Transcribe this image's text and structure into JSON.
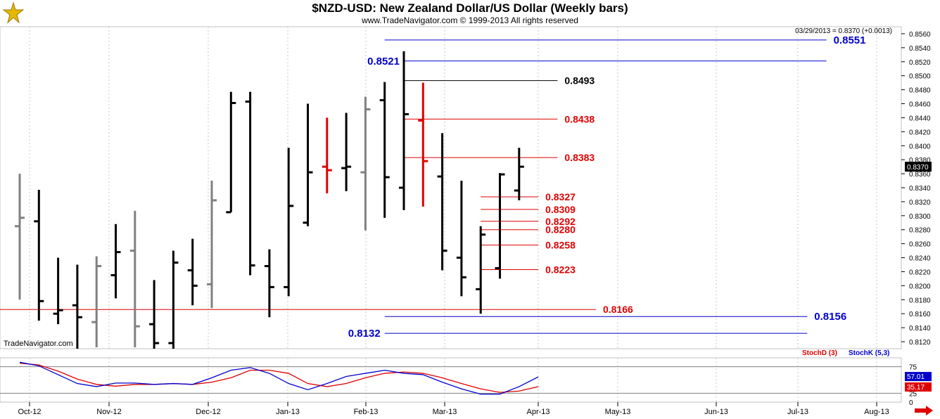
{
  "header": {
    "title": "$NZD-USD:  New Zealand Dollar/US Dollar  (Weekly bars)",
    "subtitle": "www.TradeNavigator.com © 1999-2013 All rights reserved",
    "last_quote": "03/29/2013 = 0.8370 (+0.0013)",
    "watermark": "TradeNavigator.com"
  },
  "colors": {
    "bar_up": "#000000",
    "bar_gray": "#808080",
    "bar_red": "#e00000",
    "level_blue": "#0000cc",
    "level_red": "#e00000",
    "stochD": "#e00000",
    "stochK": "#0000cc"
  },
  "chart_data": {
    "type": "ohlc",
    "ylim": [
      0.811,
      0.857
    ],
    "y_ticks": [
      "0.8560",
      "0.8540",
      "0.8520",
      "0.8500",
      "0.8480",
      "0.8460",
      "0.8440",
      "0.8420",
      "0.8400",
      "0.8380",
      "0.8360",
      "0.8340",
      "0.8320",
      "0.8300",
      "0.8280",
      "0.8260",
      "0.8240",
      "0.8220",
      "0.8200",
      "0.8180",
      "0.8160",
      "0.8140",
      "0.8120"
    ],
    "x_labels": [
      "Oct-12",
      "Nov-12",
      "Dec-12",
      "Jan-13",
      "Feb-13",
      "Mar-13",
      "Apr-13",
      "May-13",
      "Jun-13",
      "Jul-13",
      "Aug-13"
    ],
    "last_price_label": "0.8370",
    "bars": [
      {
        "color": "gray",
        "open": 0.8285,
        "high": 0.836,
        "low": 0.818,
        "close": 0.8297
      },
      {
        "color": "black",
        "open": 0.8292,
        "high": 0.8337,
        "low": 0.815,
        "close": 0.8178
      },
      {
        "color": "black",
        "open": 0.816,
        "high": 0.824,
        "low": 0.8145,
        "close": 0.8165
      },
      {
        "color": "black",
        "open": 0.8172,
        "high": 0.823,
        "low": 0.811,
        "close": 0.8155
      },
      {
        "color": "gray",
        "open": 0.8148,
        "high": 0.8242,
        "low": 0.8112,
        "close": 0.8228
      },
      {
        "color": "black",
        "open": 0.8215,
        "high": 0.8288,
        "low": 0.8182,
        "close": 0.8248
      },
      {
        "color": "gray",
        "open": 0.825,
        "high": 0.8307,
        "low": 0.8112,
        "close": 0.8142
      },
      {
        "color": "black",
        "open": 0.8145,
        "high": 0.8208,
        "low": 0.811,
        "close": 0.8118
      },
      {
        "color": "black",
        "open": 0.8118,
        "high": 0.825,
        "low": 0.811,
        "close": 0.8233
      },
      {
        "color": "black",
        "open": 0.8222,
        "high": 0.8267,
        "low": 0.8172,
        "close": 0.82
      },
      {
        "color": "gray",
        "open": 0.8202,
        "high": 0.835,
        "low": 0.8168,
        "close": 0.8322
      },
      {
        "color": "black",
        "open": 0.8305,
        "high": 0.8477,
        "low": 0.8305,
        "close": 0.8461
      },
      {
        "color": "black",
        "open": 0.8463,
        "high": 0.8477,
        "low": 0.8215,
        "close": 0.8229
      },
      {
        "color": "black",
        "open": 0.8228,
        "high": 0.8252,
        "low": 0.8155,
        "close": 0.8198
      },
      {
        "color": "black",
        "open": 0.8198,
        "high": 0.8397,
        "low": 0.8185,
        "close": 0.8314
      },
      {
        "color": "black",
        "open": 0.829,
        "high": 0.846,
        "low": 0.8285,
        "close": 0.8362
      },
      {
        "color": "red",
        "open": 0.837,
        "high": 0.844,
        "low": 0.8332,
        "close": 0.8365
      },
      {
        "color": "black",
        "open": 0.8368,
        "high": 0.8447,
        "low": 0.8335,
        "close": 0.837
      },
      {
        "color": "gray",
        "open": 0.8362,
        "high": 0.847,
        "low": 0.8279,
        "close": 0.8452
      },
      {
        "color": "black",
        "open": 0.8465,
        "high": 0.8491,
        "low": 0.8297,
        "close": 0.8355
      },
      {
        "color": "black",
        "open": 0.834,
        "high": 0.8535,
        "low": 0.8308,
        "close": 0.8445
      },
      {
        "color": "red",
        "open": 0.8436,
        "high": 0.849,
        "low": 0.8313,
        "close": 0.8378
      },
      {
        "color": "black",
        "open": 0.8356,
        "high": 0.8418,
        "low": 0.8222,
        "close": 0.825
      },
      {
        "color": "black",
        "open": 0.824,
        "high": 0.835,
        "low": 0.8185,
        "close": 0.8212
      },
      {
        "color": "black",
        "open": 0.8195,
        "high": 0.8285,
        "low": 0.816,
        "close": 0.8273
      },
      {
        "color": "black",
        "open": 0.8225,
        "high": 0.8361,
        "low": 0.821,
        "close": 0.8359
      },
      {
        "color": "black",
        "open": 0.8336,
        "high": 0.8397,
        "low": 0.8322,
        "close": 0.837
      }
    ],
    "levels": [
      {
        "value": 0.8551,
        "label": "0.8551",
        "color": "blue",
        "label_side": "right",
        "start_bar": 19,
        "end_bar": 42
      },
      {
        "value": 0.8521,
        "label": "0.8521",
        "color": "blue",
        "label_side": "left",
        "start_bar": 20,
        "end_bar": 42
      },
      {
        "value": 0.8493,
        "label": "0.8493",
        "color": "black",
        "label_side": "right",
        "start_bar": 20,
        "end_bar": 28
      },
      {
        "value": 0.8438,
        "label": "0.8438",
        "color": "red",
        "label_side": "right",
        "start_bar": 20,
        "end_bar": 28
      },
      {
        "value": 0.8383,
        "label": "0.8383",
        "color": "red",
        "label_side": "right",
        "start_bar": 20,
        "end_bar": 28
      },
      {
        "value": 0.8327,
        "label": "0.8327",
        "color": "red",
        "label_side": "right",
        "start_bar": 24,
        "end_bar": 27
      },
      {
        "value": 0.8309,
        "label": "0.8309",
        "color": "red",
        "label_side": "right",
        "start_bar": 24,
        "end_bar": 27
      },
      {
        "value": 0.8292,
        "label": "0.8292",
        "color": "red",
        "label_side": "right",
        "start_bar": 24,
        "end_bar": 27
      },
      {
        "value": 0.828,
        "label": "0.8280",
        "color": "red",
        "label_side": "right",
        "start_bar": 24,
        "end_bar": 27
      },
      {
        "value": 0.8258,
        "label": "0.8258",
        "color": "red",
        "label_side": "right",
        "start_bar": 24,
        "end_bar": 27
      },
      {
        "value": 0.8223,
        "label": "0.8223",
        "color": "red",
        "label_side": "right",
        "start_bar": 24,
        "end_bar": 27
      },
      {
        "value": 0.8166,
        "label": "0.8166",
        "color": "red",
        "label_side": "right",
        "start_bar": -1,
        "end_bar": 30
      },
      {
        "value": 0.8156,
        "label": "0.8156",
        "color": "blue",
        "label_side": "right",
        "start_bar": 19,
        "end_bar": 41
      },
      {
        "value": 0.8132,
        "label": "0.8132",
        "color": "blue",
        "label_side": "left",
        "start_bar": 19,
        "end_bar": 41
      }
    ],
    "stochastic": {
      "legend": [
        "StochD (3)",
        "StochK (5,3)"
      ],
      "ylim": [
        0,
        100
      ],
      "ticks": [
        "75",
        "25",
        "0"
      ],
      "lines": [
        80,
        20
      ],
      "k_values": [
        90,
        82,
        62,
        42,
        35,
        43,
        43,
        40,
        42,
        40,
        55,
        72,
        78,
        65,
        42,
        28,
        42,
        58,
        65,
        72,
        65,
        62,
        45,
        30,
        18,
        18,
        35,
        57
      ],
      "d_values": [
        88,
        84,
        70,
        52,
        40,
        36,
        40,
        40,
        42,
        40,
        45,
        55,
        72,
        72,
        65,
        42,
        35,
        42,
        55,
        65,
        68,
        65,
        55,
        42,
        30,
        22,
        25,
        35
      ],
      "k_label": "57.01",
      "d_label": "35.17"
    }
  }
}
